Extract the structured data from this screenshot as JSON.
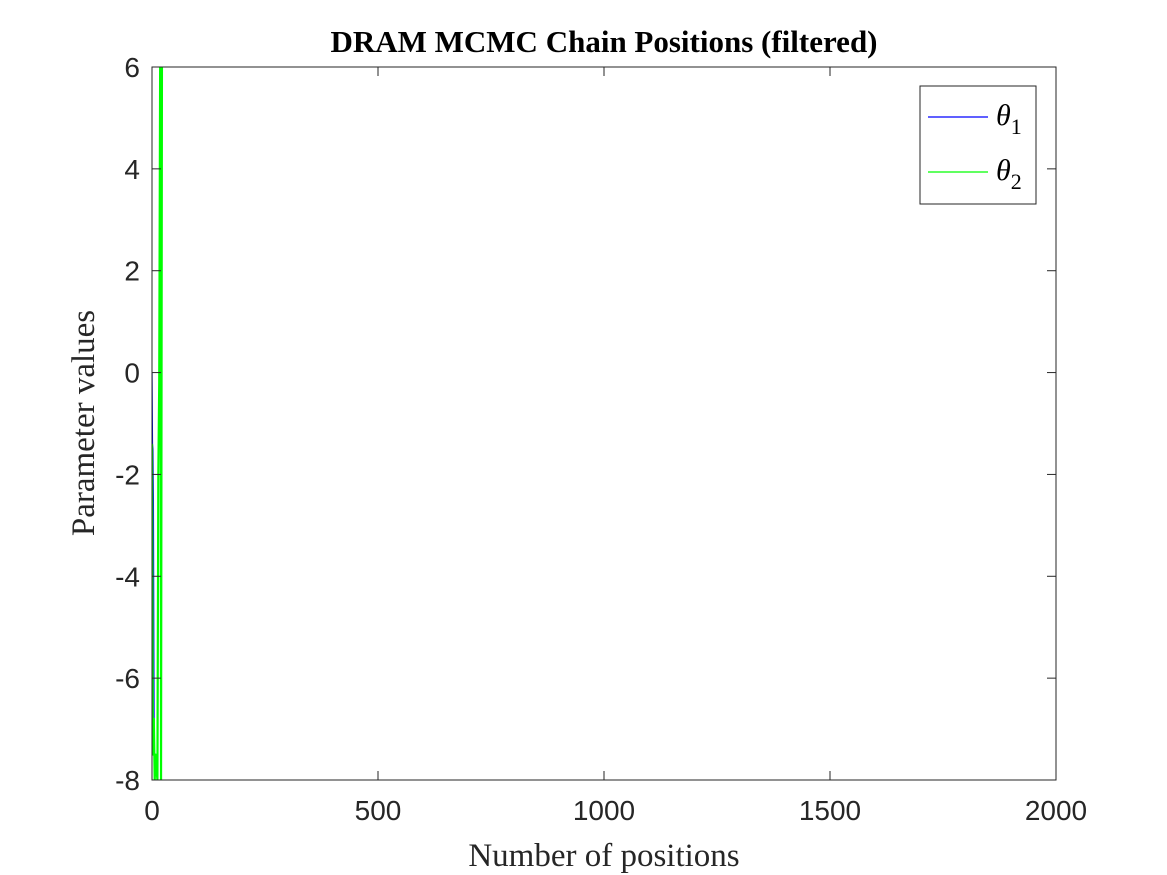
{
  "chart_data": {
    "type": "line",
    "title": "DRAM MCMC Chain Positions (filtered)",
    "xlabel": "Number of positions",
    "ylabel": "Parameter values",
    "xlim": [
      0,
      2000
    ],
    "ylim": [
      -8,
      6
    ],
    "xticks": [
      "0",
      "500",
      "1000",
      "1500",
      "2000"
    ],
    "yticks": [
      "6",
      "4",
      "2",
      "0",
      "-2",
      "-4",
      "-6",
      "-8"
    ],
    "grid": false,
    "legend_position": "top-right",
    "series": [
      {
        "name": "θ1",
        "symbol": "θ",
        "subscript": "1",
        "color": "#0000ff",
        "x": [
          0,
          1,
          2,
          3,
          4,
          5
        ],
        "y": [
          0,
          -1.4,
          -1.5,
          -2.5,
          -5.5,
          -7.8
        ]
      },
      {
        "name": "θ2",
        "symbol": "θ",
        "subscript": "2",
        "color": "#00ff00",
        "x": [
          0,
          2,
          4,
          6,
          8,
          10,
          12,
          14,
          16,
          18,
          19,
          20,
          22
        ],
        "y": [
          -1.4,
          -7.5,
          -6.8,
          -8,
          -7.5,
          -7.8,
          -8,
          -2,
          -0.2,
          6,
          6,
          -8,
          6
        ]
      }
    ]
  }
}
